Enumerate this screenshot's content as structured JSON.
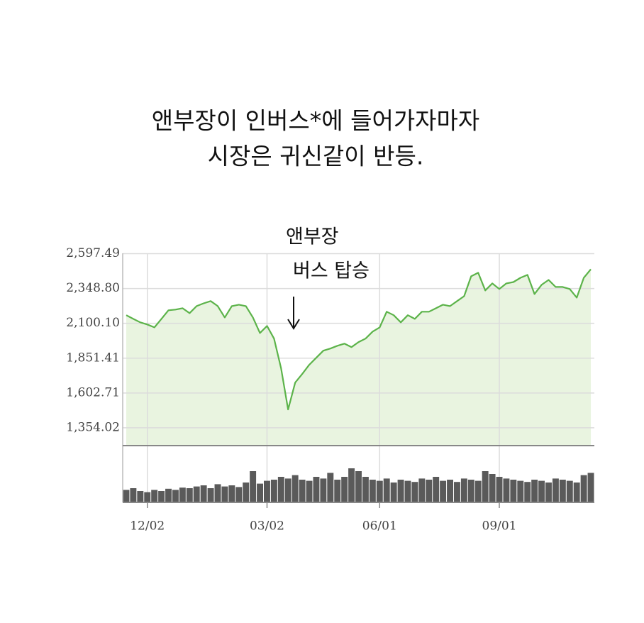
{
  "caption": [
    "앤부장이 인버스*에 들어가자마자",
    "시장은 귀신같이 반등."
  ],
  "chart_data": [
    {
      "type": "line",
      "annotations": [
        "앤부장",
        "버스 탑승"
      ],
      "categories": [
        null,
        null,
        null,
        "12/02",
        null,
        null,
        null,
        null,
        null,
        null,
        null,
        null,
        null,
        null,
        null,
        null,
        null,
        null,
        null,
        null,
        "03/02",
        null,
        null,
        null,
        null,
        null,
        null,
        null,
        null,
        null,
        null,
        null,
        null,
        null,
        null,
        null,
        "06/01",
        null,
        null,
        null,
        null,
        null,
        null,
        null,
        null,
        null,
        null,
        null,
        null,
        null,
        null,
        null,
        null,
        "09/01",
        null,
        null,
        null,
        null,
        null,
        null,
        null,
        null,
        null,
        null,
        null,
        null,
        null
      ],
      "values": [
        2158,
        2132,
        2107,
        2092,
        2071,
        2132,
        2193,
        2198,
        2208,
        2173,
        2223,
        2243,
        2259,
        2223,
        2142,
        2223,
        2233,
        2223,
        2142,
        2031,
        2081,
        1991,
        1779,
        1485,
        1677,
        1738,
        1804,
        1854,
        1905,
        1920,
        1940,
        1955,
        1930,
        1966,
        1991,
        2041,
        2071,
        2183,
        2158,
        2107,
        2158,
        2132,
        2183,
        2183,
        2208,
        2233,
        2223,
        2259,
        2294,
        2436,
        2461,
        2335,
        2385,
        2345,
        2385,
        2395,
        2425,
        2446,
        2309,
        2375,
        2410,
        2360,
        2360,
        2345,
        2284,
        2425,
        2486
      ],
      "color": "#5cb34a",
      "fill_color": "#e9f4e0",
      "ylim": [
        1227,
        2600
      ],
      "yticks": [
        {
          "value": 1354.02,
          "label": "1,354.02"
        },
        {
          "value": 1602.71,
          "label": "1,602.71"
        },
        {
          "value": 1851.41,
          "label": "1,851.41"
        },
        {
          "value": 2100.1,
          "label": "2,100.10"
        },
        {
          "value": 2348.8,
          "label": "2,348.80"
        },
        {
          "value": 2597.49,
          "label": "2,597.49"
        }
      ],
      "grid": true
    },
    {
      "type": "bar",
      "values": [
        22,
        25,
        20,
        18,
        22,
        20,
        24,
        22,
        26,
        25,
        28,
        30,
        25,
        32,
        28,
        30,
        27,
        35,
        55,
        33,
        38,
        40,
        45,
        42,
        48,
        40,
        38,
        45,
        42,
        52,
        40,
        45,
        60,
        55,
        45,
        40,
        38,
        42,
        35,
        40,
        38,
        36,
        42,
        40,
        45,
        38,
        40,
        36,
        42,
        40,
        38,
        55,
        50,
        45,
        42,
        40,
        38,
        36,
        40,
        38,
        35,
        42,
        40,
        38,
        35,
        48,
        52
      ],
      "color": "#5a5a5a",
      "ylim": [
        0,
        100
      ]
    }
  ]
}
